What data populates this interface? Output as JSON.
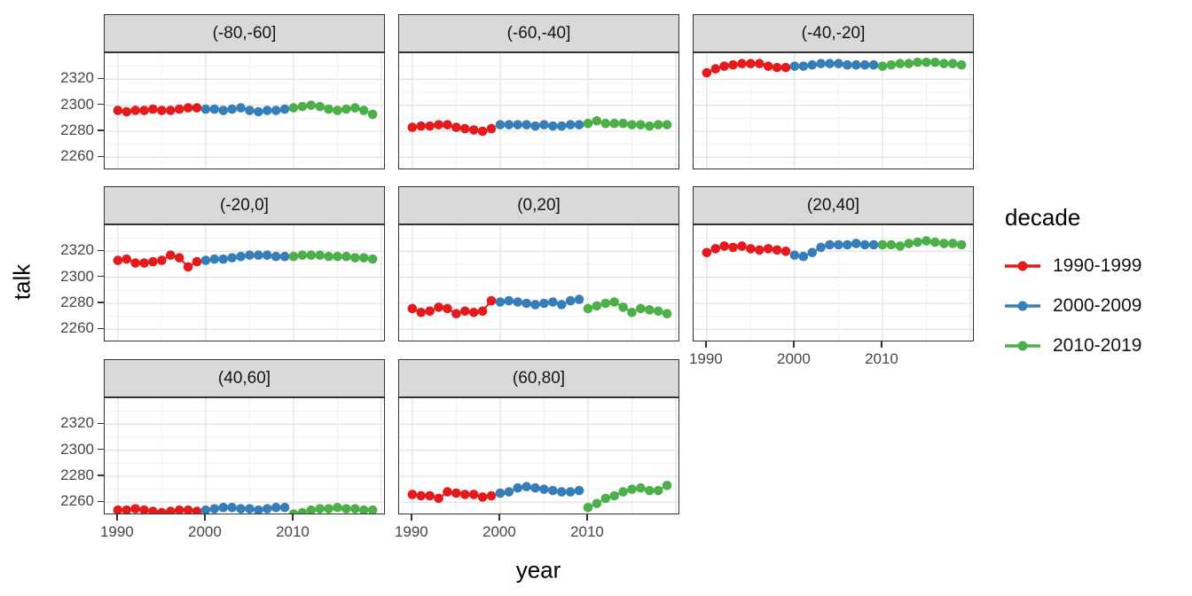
{
  "legend": {
    "title": "decade",
    "entries": [
      {
        "label": "1990-1999",
        "color": "#E41A1C"
      },
      {
        "label": "2000-2009",
        "color": "#377EB8"
      },
      {
        "label": "2010-2019",
        "color": "#4DAF4A"
      }
    ]
  },
  "colors": {
    "strip_background": "#d9d9d9",
    "panel_border": "#333333",
    "grid_major": "#e3e3e3",
    "grid_minor": "#f0f0f0",
    "tick_text": "#474747"
  },
  "chart_data": {
    "type": "scatter",
    "title": "",
    "xlabel": "year",
    "ylabel": "talk",
    "xlim": [
      1988.5,
      2020.5
    ],
    "ylim": [
      2250,
      2340
    ],
    "xticks": [
      1990,
      2000,
      2010
    ],
    "yticks": [
      2320,
      2300,
      2280,
      2260
    ],
    "x_major_gridlines": [
      1990,
      2000,
      2010,
      2020
    ],
    "x_minor_gridlines": [
      1995,
      2005,
      2015
    ],
    "y_major_gridlines": [
      2320,
      2300,
      2280,
      2260
    ],
    "y_minor_gridlines": [
      2330,
      2310,
      2290,
      2270
    ],
    "grid": "on",
    "legend_position": "right",
    "facet_layout": {
      "rows": 3,
      "cols": 3,
      "n_panels": 8
    },
    "facets": [
      {
        "label": "(-80,-60]",
        "row": 0,
        "col": 0,
        "series": [
          {
            "decade": "1990-1999",
            "start_year": 1990,
            "values": [
              2296,
              2295,
              2296,
              2296,
              2297,
              2296,
              2296,
              2297,
              2298,
              2298
            ]
          },
          {
            "decade": "2000-2009",
            "start_year": 2000,
            "values": [
              2297,
              2297,
              2296,
              2297,
              2298,
              2296,
              2295,
              2296,
              2296,
              2297
            ]
          },
          {
            "decade": "2010-2019",
            "start_year": 2010,
            "values": [
              2298,
              2299,
              2300,
              2299,
              2297,
              2296,
              2297,
              2298,
              2296,
              2293
            ]
          }
        ]
      },
      {
        "label": "(-60,-40]",
        "row": 0,
        "col": 1,
        "series": [
          {
            "decade": "1990-1999",
            "start_year": 1990,
            "values": [
              2283,
              2284,
              2284,
              2285,
              2285,
              2283,
              2282,
              2281,
              2280,
              2282
            ]
          },
          {
            "decade": "2000-2009",
            "start_year": 2000,
            "values": [
              2285,
              2285,
              2285,
              2285,
              2284,
              2285,
              2284,
              2284,
              2285,
              2285
            ]
          },
          {
            "decade": "2010-2019",
            "start_year": 2010,
            "values": [
              2286,
              2288,
              2286,
              2286,
              2286,
              2285,
              2285,
              2284,
              2285,
              2285
            ]
          }
        ]
      },
      {
        "label": "(-40,-20]",
        "row": 0,
        "col": 2,
        "series": [
          {
            "decade": "1990-1999",
            "start_year": 1990,
            "values": [
              2325,
              2328,
              2330,
              2331,
              2332,
              2332,
              2332,
              2330,
              2329,
              2329
            ]
          },
          {
            "decade": "2000-2009",
            "start_year": 2000,
            "values": [
              2330,
              2330,
              2331,
              2332,
              2332,
              2332,
              2331,
              2331,
              2331,
              2331
            ]
          },
          {
            "decade": "2010-2019",
            "start_year": 2010,
            "values": [
              2330,
              2331,
              2332,
              2332,
              2333,
              2333,
              2333,
              2332,
              2332,
              2331
            ]
          }
        ]
      },
      {
        "label": "(-20,0]",
        "row": 1,
        "col": 0,
        "series": [
          {
            "decade": "1990-1999",
            "start_year": 1990,
            "values": [
              2313,
              2314,
              2311,
              2311,
              2312,
              2313,
              2317,
              2315,
              2308,
              2312
            ]
          },
          {
            "decade": "2000-2009",
            "start_year": 2000,
            "values": [
              2313,
              2314,
              2314,
              2315,
              2316,
              2317,
              2317,
              2317,
              2316,
              2316
            ]
          },
          {
            "decade": "2010-2019",
            "start_year": 2010,
            "values": [
              2316,
              2317,
              2317,
              2317,
              2316,
              2316,
              2316,
              2315,
              2315,
              2314
            ]
          }
        ]
      },
      {
        "label": "(0,20]",
        "row": 1,
        "col": 1,
        "series": [
          {
            "decade": "1990-1999",
            "start_year": 1990,
            "values": [
              2276,
              2273,
              2274,
              2277,
              2276,
              2272,
              2274,
              2273,
              2274,
              2282
            ]
          },
          {
            "decade": "2000-2009",
            "start_year": 2000,
            "values": [
              2281,
              2282,
              2281,
              2280,
              2279,
              2280,
              2281,
              2279,
              2282,
              2283
            ]
          },
          {
            "decade": "2010-2019",
            "start_year": 2010,
            "values": [
              2276,
              2278,
              2280,
              2281,
              2277,
              2273,
              2276,
              2275,
              2274,
              2272
            ]
          }
        ]
      },
      {
        "label": "(20,40]",
        "row": 1,
        "col": 2,
        "series": [
          {
            "decade": "1990-1999",
            "start_year": 1990,
            "values": [
              2319,
              2322,
              2324,
              2323,
              2324,
              2322,
              2321,
              2322,
              2321,
              2320
            ]
          },
          {
            "decade": "2000-2009",
            "start_year": 2000,
            "values": [
              2317,
              2316,
              2319,
              2323,
              2325,
              2325,
              2325,
              2326,
              2325,
              2325
            ]
          },
          {
            "decade": "2010-2019",
            "start_year": 2010,
            "values": [
              2325,
              2325,
              2324,
              2326,
              2327,
              2328,
              2327,
              2326,
              2326,
              2325
            ]
          }
        ]
      },
      {
        "label": "(40,60]",
        "row": 2,
        "col": 0,
        "series": [
          {
            "decade": "1990-1999",
            "start_year": 1990,
            "values": [
              2254,
              2254,
              2255,
              2254,
              2253,
              2252,
              2253,
              2254,
              2254,
              2253
            ]
          },
          {
            "decade": "2000-2009",
            "start_year": 2000,
            "values": [
              2254,
              2255,
              2256,
              2256,
              2255,
              2255,
              2254,
              2255,
              2256,
              2256
            ]
          },
          {
            "decade": "2010-2019",
            "start_year": 2010,
            "values": [
              2251,
              2252,
              2254,
              2255,
              2255,
              2256,
              2255,
              2255,
              2254,
              2254
            ]
          }
        ]
      },
      {
        "label": "(60,80]",
        "row": 2,
        "col": 1,
        "series": [
          {
            "decade": "1990-1999",
            "start_year": 1990,
            "values": [
              2266,
              2265,
              2265,
              2263,
              2268,
              2267,
              2266,
              2266,
              2264,
              2265
            ]
          },
          {
            "decade": "2000-2009",
            "start_year": 2000,
            "values": [
              2267,
              2268,
              2271,
              2272,
              2271,
              2270,
              2269,
              2268,
              2268,
              2269
            ]
          },
          {
            "decade": "2010-2019",
            "start_year": 2010,
            "values": [
              2256,
              2259,
              2263,
              2265,
              2268,
              2270,
              2271,
              2269,
              2269,
              2273
            ]
          }
        ]
      }
    ]
  }
}
